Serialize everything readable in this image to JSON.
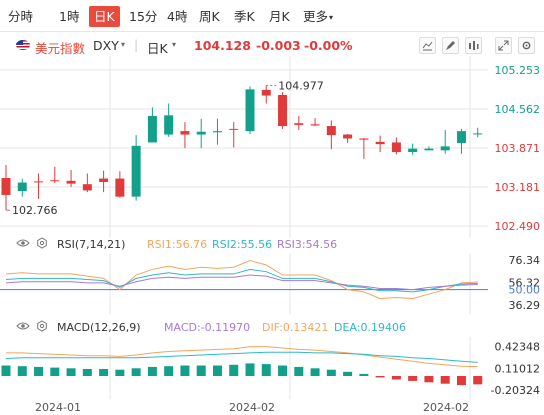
{
  "tabs": [
    {
      "label": "分時",
      "active": false,
      "caret": ""
    },
    {
      "label": "1時",
      "active": false,
      "caret": ""
    },
    {
      "label": "日K",
      "active": true,
      "caret": ""
    },
    {
      "label": "15分",
      "active": false,
      "caret": ""
    },
    {
      "label": "4時",
      "active": false,
      "caret": ""
    },
    {
      "label": "周K",
      "active": false,
      "caret": ""
    },
    {
      "label": "季K",
      "active": false,
      "caret": ""
    },
    {
      "label": "月K",
      "active": false,
      "caret": ""
    },
    {
      "label": "更多",
      "active": false,
      "caret": "▾"
    }
  ],
  "symbol": {
    "name": "美元指數",
    "code": "DXY",
    "period": "日K",
    "last": "104.128",
    "change": "-0.003",
    "change_pct": "-0.00%"
  },
  "colors": {
    "up": "#13a08b",
    "down": "#e03a3a",
    "accent": "#e84a3b",
    "rsi1": "#f5a55c",
    "rsi2": "#30b8c8",
    "rsi3": "#a77bd1",
    "macd": "#a77bd1",
    "dif": "#f5a55c",
    "dea": "#30b8c8",
    "grid": "#e6e6e6",
    "label": "#555555"
  },
  "toolbar_icons": [
    "line-draw-icon",
    "brush-icon",
    "contrast-icon",
    "expand-icon",
    "settings-icon"
  ],
  "chart_data": [
    {
      "type": "candlestick",
      "title": "美元指數 DXY 日K",
      "x_labels": [
        "2024-01",
        "2024-02",
        "2024-02"
      ],
      "y_ticks": [
        105.253,
        104.562,
        103.871,
        103.181,
        102.49
      ],
      "y_range": [
        102.49,
        105.253
      ],
      "annotations": {
        "high": "104.977",
        "low": "102.766"
      },
      "candles": [
        {
          "o": 103.34,
          "h": 103.57,
          "l": 102.77,
          "c": 103.04
        },
        {
          "o": 103.11,
          "h": 103.33,
          "l": 103.01,
          "c": 103.26
        },
        {
          "o": 103.28,
          "h": 103.42,
          "l": 102.97,
          "c": 103.27
        },
        {
          "o": 103.3,
          "h": 103.54,
          "l": 103.25,
          "c": 103.29
        },
        {
          "o": 103.29,
          "h": 103.48,
          "l": 103.18,
          "c": 103.24
        },
        {
          "o": 103.23,
          "h": 103.42,
          "l": 103.09,
          "c": 103.12
        },
        {
          "o": 103.33,
          "h": 103.47,
          "l": 103.09,
          "c": 103.27
        },
        {
          "o": 103.33,
          "h": 103.46,
          "l": 102.99,
          "c": 103.01
        },
        {
          "o": 103.01,
          "h": 104.1,
          "l": 102.94,
          "c": 103.91
        },
        {
          "o": 103.97,
          "h": 104.59,
          "l": 103.97,
          "c": 104.44
        },
        {
          "o": 104.11,
          "h": 104.66,
          "l": 104.07,
          "c": 104.45
        },
        {
          "o": 104.17,
          "h": 104.33,
          "l": 103.87,
          "c": 104.11
        },
        {
          "o": 104.11,
          "h": 104.39,
          "l": 103.87,
          "c": 104.16
        },
        {
          "o": 104.15,
          "h": 104.39,
          "l": 103.93,
          "c": 104.17
        },
        {
          "o": 104.21,
          "h": 104.33,
          "l": 103.88,
          "c": 104.2
        },
        {
          "o": 104.17,
          "h": 104.96,
          "l": 104.12,
          "c": 104.91
        },
        {
          "o": 104.9,
          "h": 104.98,
          "l": 104.66,
          "c": 104.8
        },
        {
          "o": 104.81,
          "h": 104.86,
          "l": 104.21,
          "c": 104.26
        },
        {
          "o": 104.31,
          "h": 104.44,
          "l": 104.19,
          "c": 104.28
        },
        {
          "o": 104.29,
          "h": 104.4,
          "l": 104.26,
          "c": 104.27
        },
        {
          "o": 104.26,
          "h": 104.36,
          "l": 103.85,
          "c": 104.1
        },
        {
          "o": 104.11,
          "h": 104.12,
          "l": 103.96,
          "c": 104.04
        },
        {
          "o": 104.04,
          "h": 104.05,
          "l": 103.68,
          "c": 104.02
        },
        {
          "o": 103.98,
          "h": 104.09,
          "l": 103.8,
          "c": 103.94
        },
        {
          "o": 103.97,
          "h": 104.06,
          "l": 103.76,
          "c": 103.8
        },
        {
          "o": 103.8,
          "h": 103.95,
          "l": 103.75,
          "c": 103.86
        },
        {
          "o": 103.83,
          "h": 103.9,
          "l": 103.84,
          "c": 103.86
        },
        {
          "o": 103.83,
          "h": 104.19,
          "l": 103.77,
          "c": 103.9
        },
        {
          "o": 103.96,
          "h": 104.21,
          "l": 103.77,
          "c": 104.17
        },
        {
          "o": 104.12,
          "h": 104.23,
          "l": 104.06,
          "c": 104.13
        }
      ]
    },
    {
      "type": "line",
      "title": "RSI(7,14,21)",
      "y_ticks": [
        76.34,
        56.32,
        50.0,
        36.29
      ],
      "y_range": [
        30,
        80
      ],
      "series": [
        {
          "name": "RSI1",
          "label": "RSI1:56.76",
          "color": "#f5a55c",
          "values": [
            64,
            65,
            64,
            64,
            64,
            62,
            60,
            50,
            63,
            68,
            71,
            68,
            70,
            69,
            70,
            76,
            72,
            63,
            63,
            63,
            58,
            50,
            48,
            42,
            43,
            42,
            46,
            50,
            56,
            56.76
          ]
        },
        {
          "name": "RSI2",
          "label": "RSI2:55.56",
          "color": "#30b8c8",
          "values": [
            59,
            60,
            60,
            60,
            60,
            59,
            58,
            52,
            60,
            63,
            65,
            63,
            64,
            64,
            64,
            68,
            66,
            60,
            60,
            60,
            57,
            53,
            52,
            49,
            49,
            48,
            50,
            53,
            55,
            55.56
          ]
        },
        {
          "name": "RSI3",
          "label": "RSI3:54.56",
          "color": "#a77bd1",
          "values": [
            56,
            57,
            57,
            57,
            57,
            56,
            56,
            53,
            57,
            60,
            61,
            60,
            61,
            61,
            61,
            63,
            62,
            58,
            58,
            58,
            56,
            54,
            53,
            51,
            51,
            50,
            52,
            53,
            54,
            54.56
          ]
        }
      ]
    },
    {
      "type": "bar",
      "title": "MACD(12,26,9)",
      "y_ticks": [
        0.42348,
        0.11012,
        -0.20324
      ],
      "y_range": [
        -0.3,
        0.5
      ],
      "labels": {
        "macd": "MACD:-0.11970",
        "dif": "DIF:0.13421",
        "dea": "DEA:0.19406"
      },
      "macd": [
        0.15,
        0.14,
        0.13,
        0.12,
        0.11,
        0.1,
        0.1,
        0.09,
        0.11,
        0.13,
        0.14,
        0.15,
        0.15,
        0.15,
        0.16,
        0.18,
        0.17,
        0.15,
        0.13,
        0.11,
        0.09,
        0.06,
        0.03,
        -0.02,
        -0.05,
        -0.07,
        -0.09,
        -0.11,
        -0.13,
        -0.1197
      ],
      "dif": [
        0.33,
        0.33,
        0.32,
        0.31,
        0.3,
        0.29,
        0.29,
        0.28,
        0.3,
        0.33,
        0.35,
        0.36,
        0.37,
        0.38,
        0.39,
        0.42,
        0.42,
        0.4,
        0.38,
        0.37,
        0.35,
        0.33,
        0.3,
        0.27,
        0.24,
        0.21,
        0.18,
        0.16,
        0.14,
        0.13421
      ],
      "dea": [
        0.25,
        0.26,
        0.26,
        0.26,
        0.26,
        0.26,
        0.26,
        0.26,
        0.26,
        0.27,
        0.28,
        0.29,
        0.3,
        0.31,
        0.32,
        0.33,
        0.34,
        0.34,
        0.34,
        0.33,
        0.33,
        0.32,
        0.31,
        0.29,
        0.28,
        0.26,
        0.25,
        0.23,
        0.21,
        0.19406
      ]
    }
  ]
}
